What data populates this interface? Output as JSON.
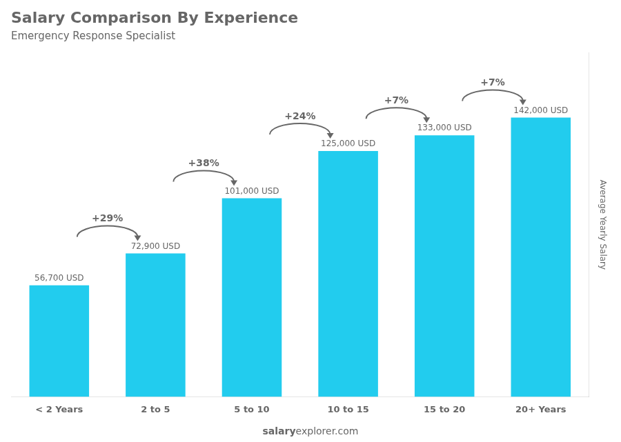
{
  "chart_data": {
    "type": "bar",
    "title": "Salary Comparison By Experience",
    "subtitle": "Emergency Response Specialist",
    "categories": [
      "< 2 Years",
      "2 to 5",
      "5 to 10",
      "10 to 15",
      "15 to 20",
      "20+ Years"
    ],
    "values": [
      56700,
      72900,
      101000,
      125000,
      133000,
      142000
    ],
    "value_labels": [
      "56,700 USD",
      "72,900 USD",
      "101,000 USD",
      "125,000 USD",
      "133,000 USD",
      "142,000 USD"
    ],
    "data_labels": true,
    "color": "#22ccee",
    "ylabel": "Average Yearly Salary",
    "ylim": [
      0,
      175000
    ],
    "tick_labels": "x",
    "grid": false,
    "annotations": [
      "+29%",
      "+38%",
      "+24%",
      "+7%",
      "+7%"
    ],
    "footer": [
      "salary",
      "explorer.com"
    ]
  }
}
